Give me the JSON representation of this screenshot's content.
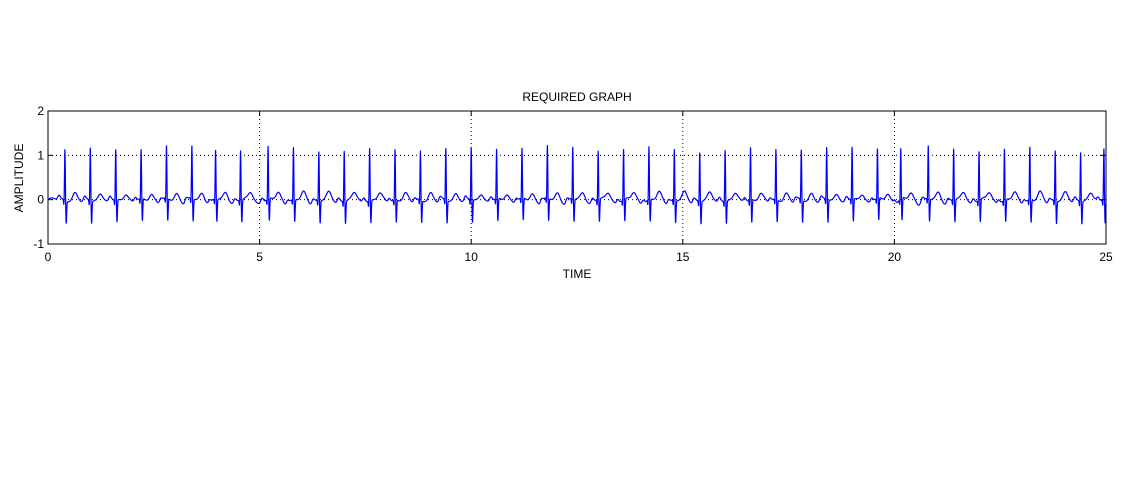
{
  "chart_data": {
    "type": "line",
    "title": "REQUIRED GRAPH",
    "xlabel": "TIME",
    "ylabel": "AMPLITUDE",
    "xlim": [
      0,
      25
    ],
    "ylim": [
      -1,
      2
    ],
    "x_ticks": [
      0,
      5,
      10,
      15,
      20,
      25
    ],
    "y_ticks": [
      -1,
      0,
      1,
      2
    ],
    "grid": "dotted",
    "line_color": "#0000ff",
    "series": [
      {
        "values": {
          "beat_times": [
            0.4,
            1.0,
            1.6,
            2.2,
            2.8,
            3.4,
            3.96,
            4.55,
            5.2,
            5.8,
            6.4,
            7.0,
            7.6,
            8.2,
            8.8,
            9.4,
            10.0,
            10.6,
            11.2,
            11.8,
            12.4,
            13.0,
            13.6,
            14.2,
            14.8,
            15.4,
            16.0,
            16.6,
            17.2,
            17.8,
            18.4,
            19.0,
            19.6,
            20.15,
            20.8,
            21.4,
            22.0,
            22.6,
            23.2,
            23.8,
            24.4,
            24.95
          ],
          "r_peak": 1.15,
          "s_trough": -0.5,
          "t_wave": 0.15,
          "baseline": 0.0
        }
      }
    ]
  }
}
